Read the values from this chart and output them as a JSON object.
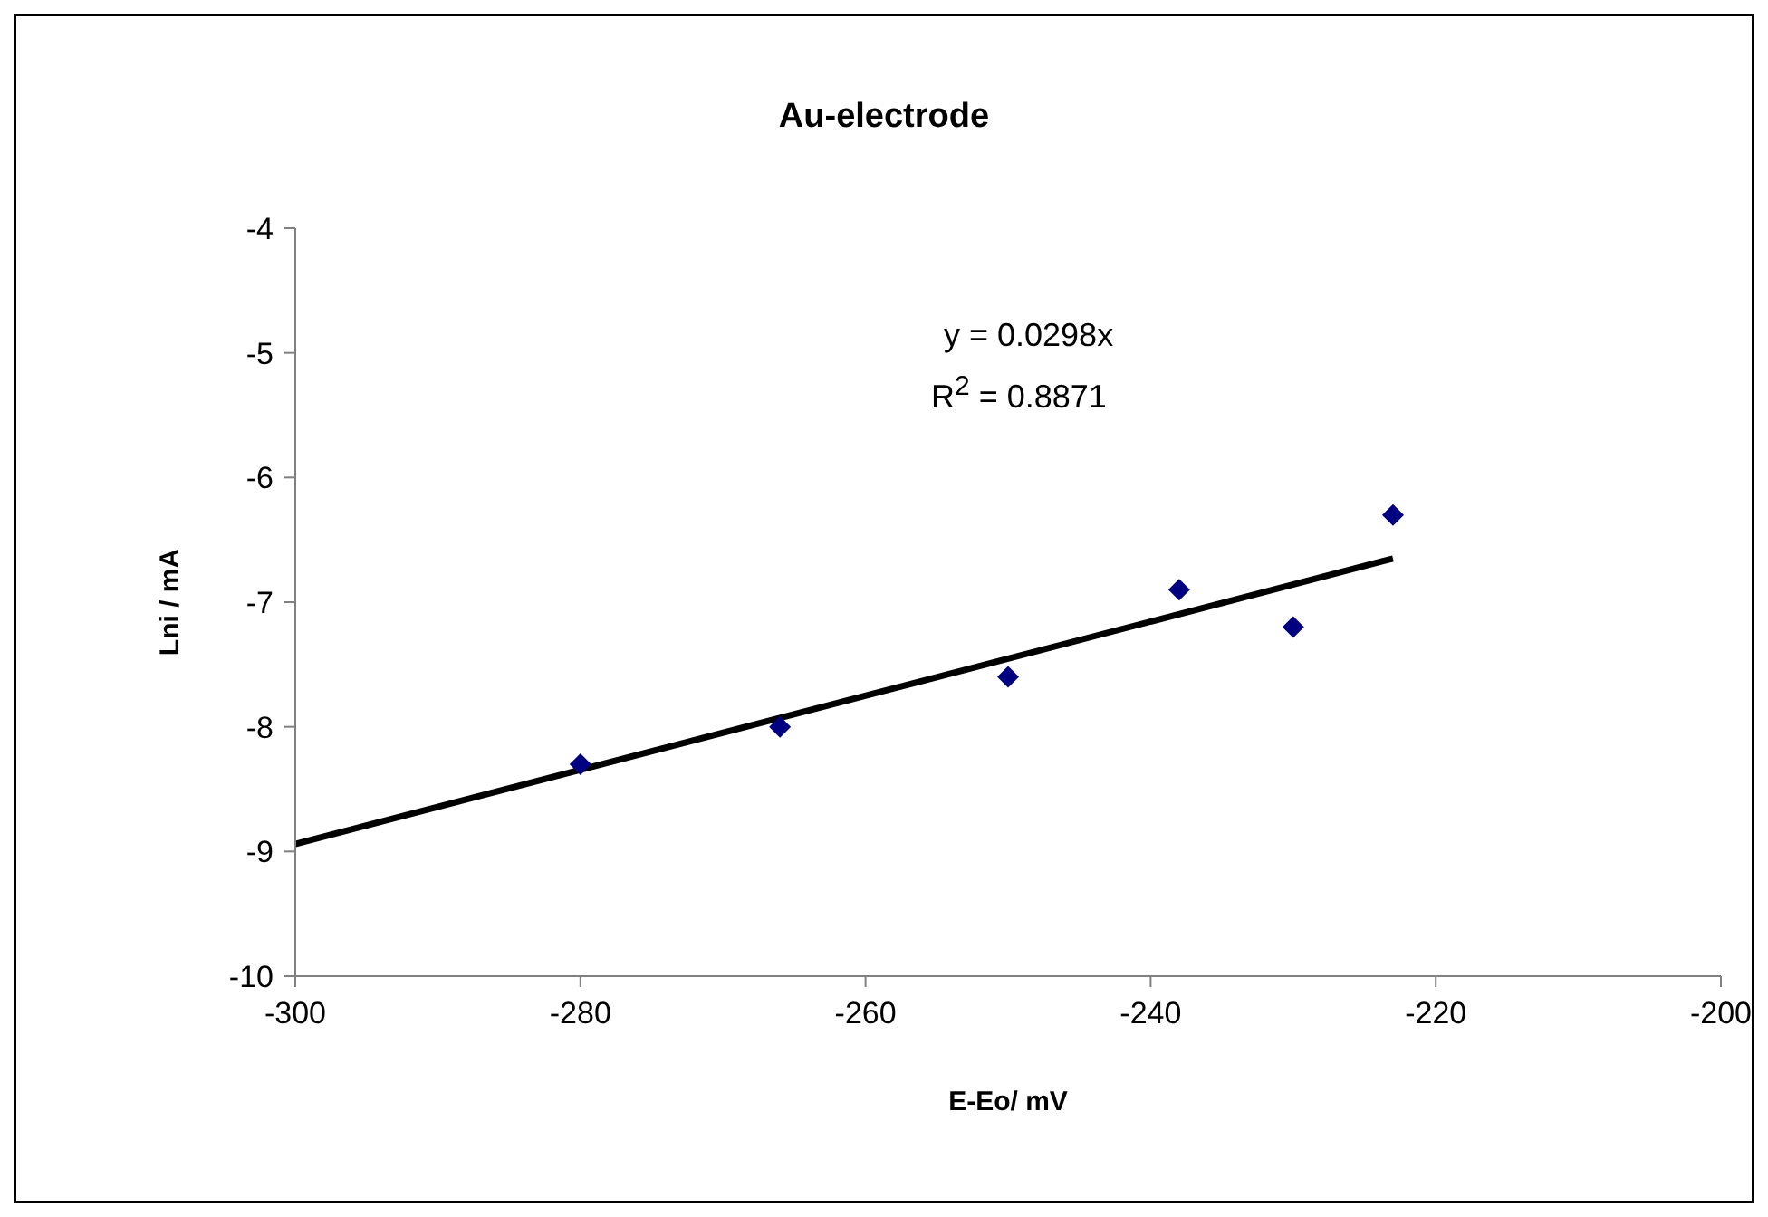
{
  "chart_data": {
    "type": "scatter",
    "title": "Au-electrode",
    "xlabel": "E-Eo/ mV",
    "ylabel": "Lni / mA",
    "annotations": [
      "y = 0.0298x",
      "R$^{2}$ = 0.8871"
    ],
    "x": [
      -280,
      -266,
      -250,
      -238,
      -230,
      -223
    ],
    "series": [
      {
        "color": "#000080",
        "marker": "diamond",
        "values": [
          -8.3,
          -8.0,
          -7.6,
          -6.9,
          -7.2,
          -6.3
        ]
      },
      {
        "type": "line",
        "color": "#000000",
        "marker": "none",
        "x": [
          -300,
          -223
        ],
        "values": [
          -8.94,
          -6.65
        ]
      }
    ],
    "xlim": [
      -300,
      -200
    ],
    "xticks": [
      -300,
      -280,
      -260,
      -240,
      -220,
      -200
    ],
    "ylim": [
      -10,
      -4
    ],
    "yticks": [
      -10,
      -9,
      -8,
      -7,
      -6,
      -5,
      -4
    ],
    "grid": false,
    "legend": false,
    "line_style": "solid"
  }
}
